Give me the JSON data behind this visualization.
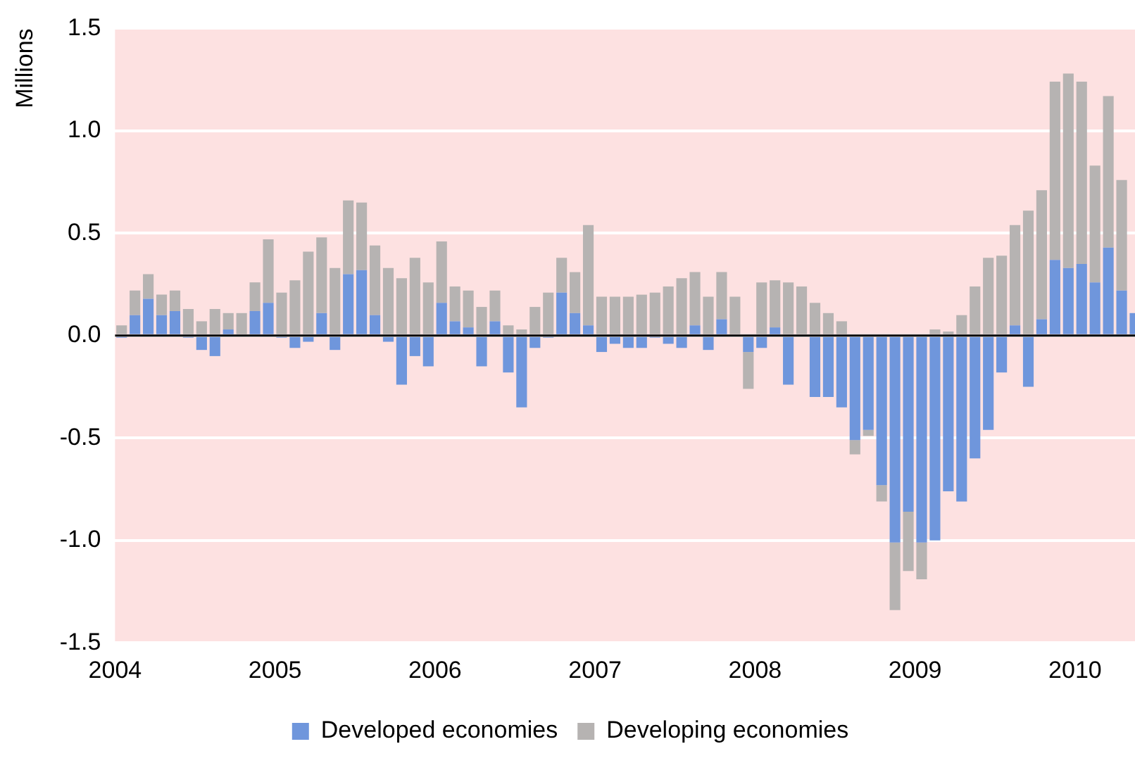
{
  "chart_data": {
    "type": "bar",
    "stacked": true,
    "ylabel": "Millions",
    "x": [
      "2004-01-16",
      "2004-02-16",
      "2004-03-16",
      "2004-04-16",
      "2004-05-16",
      "2004-06-16",
      "2004-07-16",
      "2004-08-16",
      "2004-09-16",
      "2004-10-16",
      "2004-11-16",
      "2004-12-16",
      "2005-01-16",
      "2005-02-16",
      "2005-03-16",
      "2005-04-16",
      "2005-05-16",
      "2005-06-16",
      "2005-07-16",
      "2005-08-16",
      "2005-09-16",
      "2005-10-16",
      "2005-11-16",
      "2005-12-16",
      "2006-01-16",
      "2006-02-16",
      "2006-03-16",
      "2006-04-16",
      "2006-05-16",
      "2006-06-16",
      "2006-07-16",
      "2006-08-16",
      "2006-09-16",
      "2006-10-16",
      "2006-11-16",
      "2006-12-16",
      "2007-01-16",
      "2007-02-16",
      "2007-03-16",
      "2007-04-16",
      "2007-05-16",
      "2007-06-16",
      "2007-07-16",
      "2007-08-16",
      "2007-09-16",
      "2007-10-16",
      "2007-11-16",
      "2007-12-16",
      "2008-01-16",
      "2008-02-16",
      "2008-03-16",
      "2008-04-16",
      "2008-05-16",
      "2008-06-16",
      "2008-07-16",
      "2008-08-16",
      "2008-09-16",
      "2008-10-16",
      "2008-11-16",
      "2008-12-16",
      "2009-01-16",
      "2009-02-16",
      "2009-03-16",
      "2009-04-16",
      "2009-05-16",
      "2009-06-16",
      "2009-07-16",
      "2009-08-16",
      "2009-09-16",
      "2009-10-16",
      "2009-11-16",
      "2009-12-16",
      "2010-01-16",
      "2010-02-16",
      "2010-03-16",
      "2010-04-16",
      "2010-05-16"
    ],
    "series": [
      {
        "name": "Developed economies",
        "color": "#6f96dc",
        "values": [
          -0.01,
          0.1,
          0.18,
          0.1,
          0.12,
          -0.01,
          -0.07,
          -0.1,
          0.03,
          0,
          0.12,
          0.16,
          -0.01,
          -0.06,
          -0.03,
          0.11,
          -0.07,
          0.3,
          0.32,
          0.1,
          -0.03,
          -0.24,
          -0.1,
          -0.15,
          0.16,
          0.07,
          0.04,
          -0.15,
          0.07,
          -0.18,
          -0.35,
          -0.06,
          -0.01,
          0.21,
          0.11,
          0.05,
          -0.08,
          -0.04,
          -0.06,
          -0.06,
          -0.01,
          -0.04,
          -0.06,
          0.05,
          -0.07,
          0.08,
          0,
          -0.08,
          -0.06,
          0.04,
          -0.24,
          0,
          -0.3,
          -0.3,
          -0.35,
          -0.51,
          -0.46,
          -0.73,
          -1.01,
          -0.86,
          -1.01,
          -1,
          -0.76,
          -0.81,
          -0.6,
          -0.46,
          -0.18,
          0.05,
          -0.25,
          0.08,
          0.37,
          0.33,
          0.35,
          0.26,
          0.43,
          0.22,
          0.11
        ]
      },
      {
        "name": "Developing economies",
        "color": "#b6b3b2",
        "values": [
          0.05,
          0.12,
          0.12,
          0.1,
          0.1,
          0.13,
          0.07,
          0.13,
          0.08,
          0.11,
          0.14,
          0.31,
          0.21,
          0.27,
          0.41,
          0.37,
          0.33,
          0.36,
          0.33,
          0.34,
          0.33,
          0.28,
          0.38,
          0.26,
          0.3,
          0.17,
          0.18,
          0.14,
          0.15,
          0.05,
          0.03,
          0.14,
          0.21,
          0.17,
          0.2,
          0.49,
          0.19,
          0.19,
          0.19,
          0.2,
          0.21,
          0.24,
          0.28,
          0.26,
          0.19,
          0.23,
          0.19,
          -0.18,
          0.26,
          0.23,
          0.26,
          0.24,
          0.16,
          0.11,
          0.07,
          -0.07,
          -0.03,
          -0.08,
          -0.33,
          -0.29,
          -0.18,
          0.03,
          0.02,
          0.1,
          0.24,
          0.38,
          0.39,
          0.49,
          0.61,
          0.63,
          0.87,
          0.95,
          0.89,
          0.57,
          0.74,
          0.54,
          null
        ]
      }
    ],
    "xlim": [
      "2004-01",
      "2010-05-16"
    ],
    "xticks": [
      "2004",
      "2005",
      "2006",
      "2007",
      "2008",
      "2009",
      "2010"
    ],
    "ylim": [
      -1.5,
      1.5
    ],
    "yticks": [
      {
        "value": -1.5,
        "label": "-1.5"
      },
      {
        "value": -1,
        "label": "-1.0"
      },
      {
        "value": -0.5,
        "label": "-0.5"
      },
      {
        "value": 0,
        "label": "0.0"
      },
      {
        "value": 0.5,
        "label": "0.5"
      },
      {
        "value": 1,
        "label": "1.0"
      },
      {
        "value": 1.5,
        "label": "1.5"
      }
    ],
    "ref_lines": [
      {
        "axis": "y",
        "value": 0,
        "color": "#000000"
      }
    ],
    "grid": "y",
    "legend": "bottom"
  }
}
